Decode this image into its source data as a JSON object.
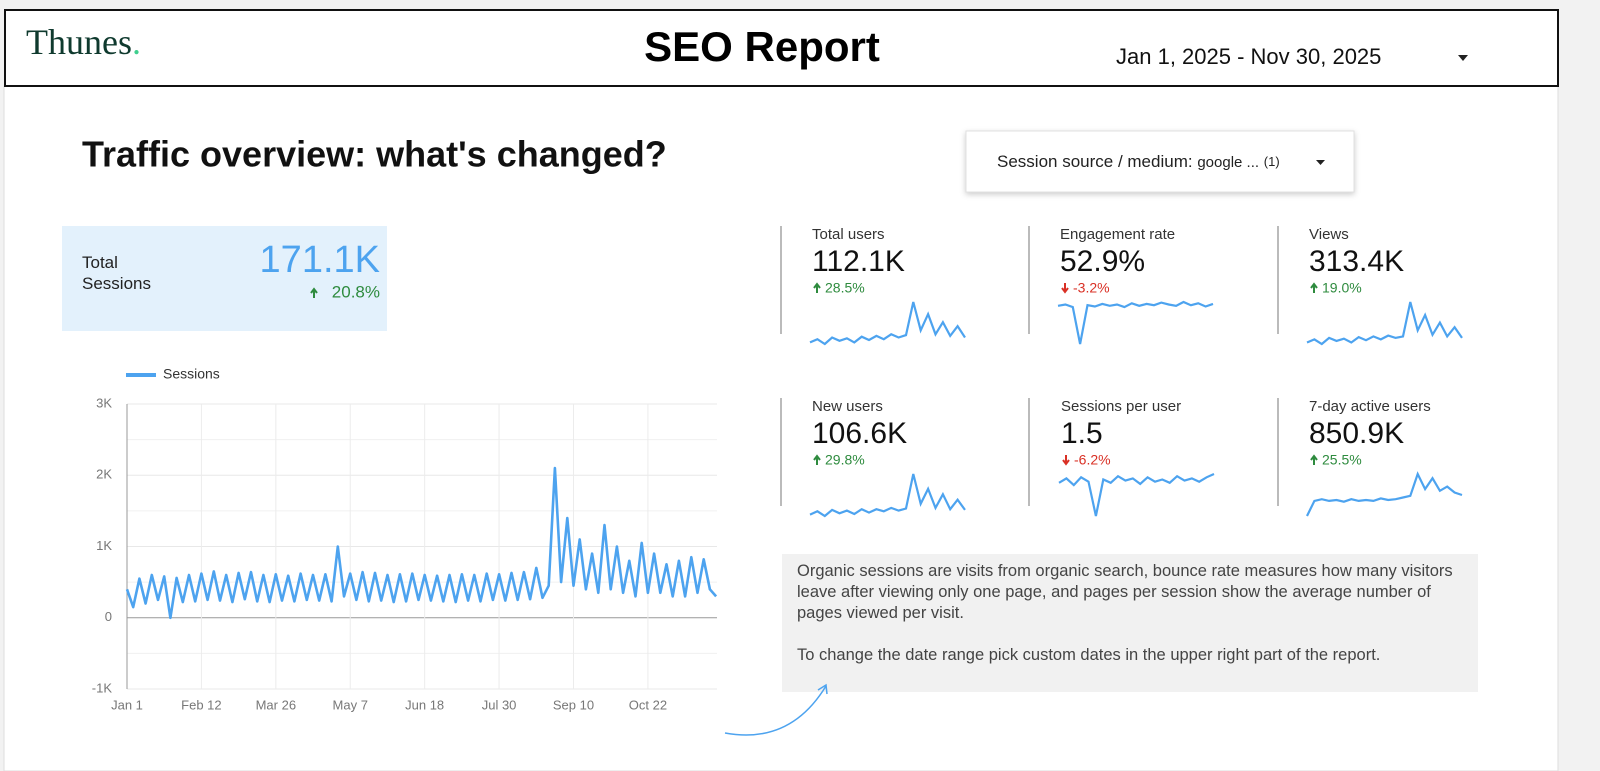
{
  "header": {
    "logo": {
      "name": "Thunes",
      "mark": "."
    },
    "title": "SEO Report",
    "date_range": "Jan 1, 2025 - Nov 30, 2025"
  },
  "section_title": "Traffic overview: what's changed?",
  "filter": {
    "label": "Session source / medium:",
    "value": "google ...",
    "count": "(1)"
  },
  "total": {
    "label": "Total Sessions",
    "value": "171.1K",
    "change": "20.8%",
    "direction": "up"
  },
  "scorecards": [
    {
      "label": "Total users",
      "value": "112.1K",
      "change": "28.5%",
      "direction": "up",
      "spark": [
        20,
        24,
        18,
        26,
        22,
        25,
        20,
        27,
        23,
        28,
        24,
        30,
        26,
        29,
        70,
        35,
        55,
        30,
        45,
        28,
        40,
        26
      ]
    },
    {
      "label": "Engagement rate",
      "value": "52.9%",
      "change": "-3.2%",
      "direction": "down",
      "spark": [
        70,
        72,
        68,
        10,
        71,
        69,
        73,
        70,
        72,
        68,
        74,
        70,
        73,
        71,
        75,
        72,
        70,
        76,
        71,
        74,
        69,
        73
      ]
    },
    {
      "label": "Views",
      "value": "313.4K",
      "change": "19.0%",
      "direction": "up",
      "spark": [
        22,
        26,
        20,
        28,
        24,
        27,
        22,
        29,
        25,
        30,
        26,
        31,
        28,
        30,
        75,
        38,
        58,
        32,
        48,
        30,
        42,
        28
      ]
    },
    {
      "label": "New users",
      "value": "106.6K",
      "change": "29.8%",
      "direction": "up",
      "spark": [
        20,
        25,
        18,
        27,
        22,
        26,
        21,
        28,
        23,
        28,
        25,
        30,
        26,
        29,
        80,
        36,
        58,
        30,
        50,
        28,
        42,
        27
      ]
    },
    {
      "label": "Sessions per user",
      "value": "1.5",
      "change": "-6.2%",
      "direction": "down",
      "spark": [
        40,
        44,
        38,
        45,
        41,
        10,
        43,
        40,
        46,
        42,
        44,
        39,
        45,
        41,
        43,
        40,
        46,
        42,
        44,
        41,
        45,
        48
      ]
    },
    {
      "label": "7-day active users",
      "value": "850.9K",
      "change": "25.5%",
      "direction": "up",
      "spark": [
        20,
        38,
        40,
        38,
        39,
        37,
        40,
        38,
        39,
        38,
        41,
        39,
        40,
        42,
        44,
        70,
        52,
        65,
        50,
        55,
        48,
        45
      ]
    }
  ],
  "note": [
    "Organic sessions are visits from organic search, bounce rate measures how many visitors leave after viewing only one page, and pages per session show the average number of pages viewed per visit.",
    "To change the date range pick custom dates in the upper right part of the report."
  ],
  "chart_data": {
    "type": "line",
    "x": [
      0,
      3.5,
      7,
      10.5,
      14,
      17.5,
      21,
      24.5,
      28,
      31.5,
      35,
      38.5,
      42,
      45.5,
      49,
      52.5,
      56,
      59.5,
      63,
      66.5,
      70,
      73.5,
      77,
      80.5,
      84,
      87.5,
      91,
      94.5,
      98,
      101.5,
      105,
      108.5,
      112,
      115.5,
      119,
      122.5,
      126,
      129.5,
      133,
      136.5,
      140,
      143.5,
      147,
      150.5,
      154,
      157.5,
      161,
      164.5,
      168,
      171.5,
      175,
      178.5,
      182,
      185.5,
      189,
      192.5,
      196,
      199.5,
      203,
      206.5,
      210,
      213.5,
      217,
      220.5,
      224,
      227.5,
      231,
      234.5,
      238,
      241.5,
      245,
      248.5,
      252,
      255.5,
      259,
      262.5,
      266,
      269.5,
      273,
      276.5,
      280,
      283.5,
      287,
      290.5,
      294,
      297.5,
      301,
      304.5,
      308,
      311.5,
      315,
      318.5,
      322,
      325.5,
      329,
      332.5
    ],
    "series": [
      {
        "name": "Sessions",
        "color": "#4da3ef",
        "values": [
          400,
          150,
          550,
          200,
          600,
          250,
          580,
          0,
          560,
          220,
          600,
          230,
          620,
          250,
          650,
          240,
          600,
          220,
          630,
          260,
          640,
          230,
          600,
          220,
          610,
          240,
          590,
          230,
          620,
          250,
          600,
          240,
          610,
          230,
          1000,
          300,
          620,
          250,
          640,
          230,
          630,
          240,
          600,
          220,
          610,
          230,
          620,
          250,
          600,
          240,
          590,
          230,
          600,
          220,
          610,
          240,
          600,
          230,
          620,
          250,
          610,
          240,
          630,
          250,
          640,
          260,
          700,
          280,
          450,
          2100,
          500,
          1400,
          450,
          1100,
          400,
          900,
          350,
          1300,
          400,
          1000,
          350,
          800,
          300,
          1050,
          350,
          900,
          350,
          750,
          300,
          800,
          300,
          850,
          350,
          820,
          400,
          300
        ]
      }
    ],
    "xlim": [
      0,
      333
    ],
    "xticks": [
      {
        "value": 0,
        "label": "Jan 1"
      },
      {
        "value": 42,
        "label": "Feb 12"
      },
      {
        "value": 84,
        "label": "Mar 26"
      },
      {
        "value": 126,
        "label": "May 7"
      },
      {
        "value": 168,
        "label": "Jun 18"
      },
      {
        "value": 210,
        "label": "Jul 30"
      },
      {
        "value": 252,
        "label": "Sep 10"
      },
      {
        "value": 294,
        "label": "Oct 22"
      }
    ],
    "ylim": [
      -1000,
      3000
    ],
    "yticks": [
      {
        "value": -1000,
        "label": "-1K"
      },
      0,
      {
        "value": 1000,
        "label": "1K"
      },
      {
        "value": 2000,
        "label": "2K"
      },
      {
        "value": 3000,
        "label": "3K"
      }
    ],
    "grid": true,
    "legend": "top-left"
  }
}
